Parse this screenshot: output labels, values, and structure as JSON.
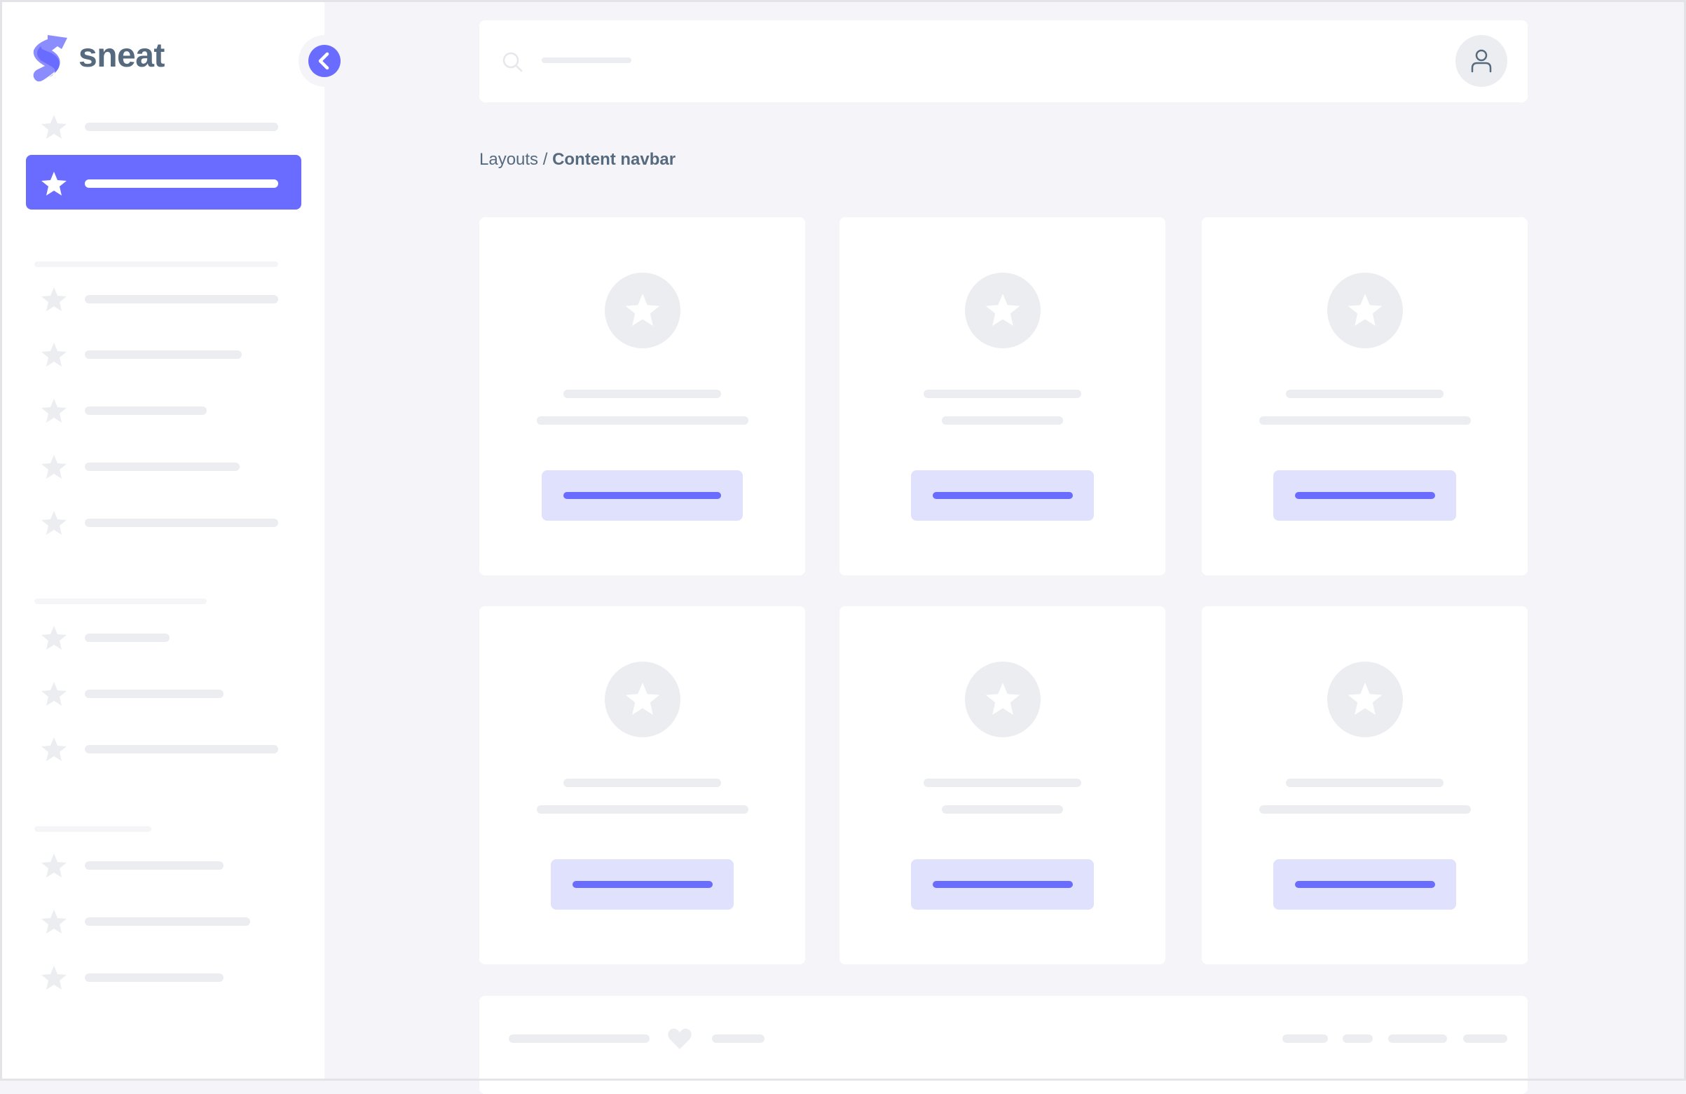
{
  "brand": {
    "name": "sneat",
    "primary_color": "#696cff",
    "text_color": "#566a7f"
  },
  "sidebar": {
    "collapse_icon": "chevron-left-icon",
    "item_icon": "star-icon",
    "active_index": 1
  },
  "navbar": {
    "search_icon": "search-icon",
    "avatar_icon": "user-icon"
  },
  "breadcrumb": {
    "parent": "Layouts",
    "separator": " / ",
    "current": "Content navbar"
  },
  "cards": {
    "count": 6,
    "icon": "star-icon"
  },
  "footer": {
    "icon": "heart-icon"
  }
}
